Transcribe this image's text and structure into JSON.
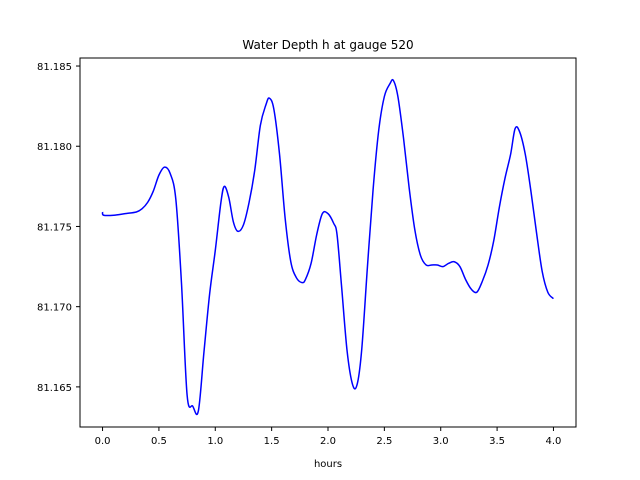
{
  "chart_data": {
    "type": "line",
    "title": "Water Depth h at gauge 520",
    "xlabel": "hours",
    "ylabel": "",
    "xlim": [
      -0.2,
      4.2
    ],
    "ylim": [
      81.1625,
      81.1855
    ],
    "xticks": [
      0.0,
      0.5,
      1.0,
      1.5,
      2.0,
      2.5,
      3.0,
      3.5,
      4.0
    ],
    "xtick_labels": [
      "0.0",
      "0.5",
      "1.0",
      "1.5",
      "2.0",
      "2.5",
      "3.0",
      "3.5",
      "4.0"
    ],
    "yticks": [
      81.165,
      81.17,
      81.175,
      81.18,
      81.185
    ],
    "ytick_labels": [
      "81.165",
      "81.170",
      "81.175",
      "81.180",
      "81.185"
    ],
    "grid": false,
    "series": [
      {
        "color": "#0000ff",
        "x": [
          0.0,
          0.01,
          0.1,
          0.2,
          0.3,
          0.35,
          0.4,
          0.45,
          0.5,
          0.55,
          0.6,
          0.65,
          0.7,
          0.75,
          0.8,
          0.85,
          0.9,
          0.95,
          1.0,
          1.05,
          1.08,
          1.12,
          1.16,
          1.2,
          1.25,
          1.3,
          1.35,
          1.4,
          1.45,
          1.48,
          1.52,
          1.57,
          1.62,
          1.67,
          1.72,
          1.77,
          1.8,
          1.85,
          1.9,
          1.95,
          2.0,
          2.05,
          2.08,
          2.12,
          2.17,
          2.22,
          2.26,
          2.3,
          2.35,
          2.4,
          2.45,
          2.5,
          2.55,
          2.58,
          2.62,
          2.67,
          2.72,
          2.77,
          2.82,
          2.87,
          2.92,
          2.97,
          3.02,
          3.07,
          3.12,
          3.17,
          3.22,
          3.27,
          3.32,
          3.37,
          3.42,
          3.47,
          3.52,
          3.57,
          3.62,
          3.66,
          3.7,
          3.75,
          3.8,
          3.85,
          3.9,
          3.95,
          4.0
        ],
        "y": [
          81.1759,
          81.1757,
          81.1757,
          81.1758,
          81.1759,
          81.1761,
          81.1765,
          81.1772,
          81.1782,
          81.1787,
          81.1783,
          81.1767,
          81.1715,
          81.1645,
          81.1638,
          81.1635,
          81.1672,
          81.1708,
          81.1735,
          81.1765,
          81.1775,
          81.1768,
          81.1753,
          81.1747,
          81.1751,
          81.1765,
          81.1785,
          81.1813,
          81.1826,
          81.183,
          81.1823,
          81.1795,
          81.1755,
          81.1728,
          81.1718,
          81.1715,
          81.1717,
          81.1727,
          81.1745,
          81.1758,
          81.1758,
          81.1752,
          81.1745,
          81.1713,
          81.1672,
          81.1651,
          81.1652,
          81.1674,
          81.1725,
          81.1773,
          81.181,
          81.1831,
          81.1839,
          81.1841,
          81.1831,
          81.1805,
          81.1774,
          81.1748,
          81.1732,
          81.1726,
          81.1726,
          81.1726,
          81.1725,
          81.1727,
          81.1728,
          81.1725,
          81.1717,
          81.1711,
          81.1709,
          81.1716,
          81.1726,
          81.1741,
          81.1762,
          81.178,
          81.1795,
          81.1811,
          81.1809,
          81.1795,
          81.1772,
          81.1746,
          81.1722,
          81.1709,
          81.1705
        ]
      }
    ]
  }
}
